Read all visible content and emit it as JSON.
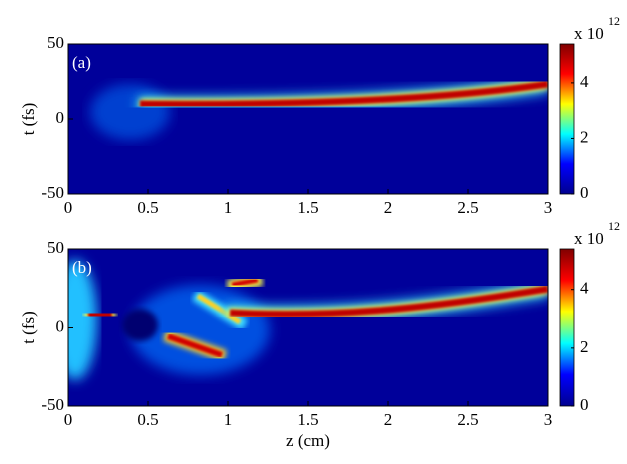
{
  "chart_data": [
    {
      "type": "heatmap",
      "panel_label": "(a)",
      "ylabel": "t (fs)",
      "xlim": [
        0,
        3
      ],
      "xticks": [
        0,
        0.5,
        1,
        1.5,
        2,
        2.5,
        3
      ],
      "ylim": [
        -50,
        50
      ],
      "yticks": [
        -50,
        0,
        50
      ],
      "colormap": "jet",
      "colorbar": {
        "lim": [
          0,
          5.4
        ],
        "ticks": [
          0,
          2,
          4
        ],
        "multiplier": "x 10",
        "exponent": "12"
      }
    },
    {
      "type": "heatmap",
      "panel_label": "(b)",
      "ylabel": "t (fs)",
      "xlabel": "z (cm)",
      "xlim": [
        0,
        3
      ],
      "xticks": [
        0,
        0.5,
        1,
        1.5,
        2,
        2.5,
        3
      ],
      "ylim": [
        -50,
        50
      ],
      "yticks": [
        -50,
        0,
        50
      ],
      "colormap": "jet",
      "colorbar": {
        "lim": [
          0,
          5.4
        ],
        "ticks": [
          0,
          2,
          4
        ],
        "multiplier": "x 10",
        "exponent": "12"
      }
    }
  ]
}
